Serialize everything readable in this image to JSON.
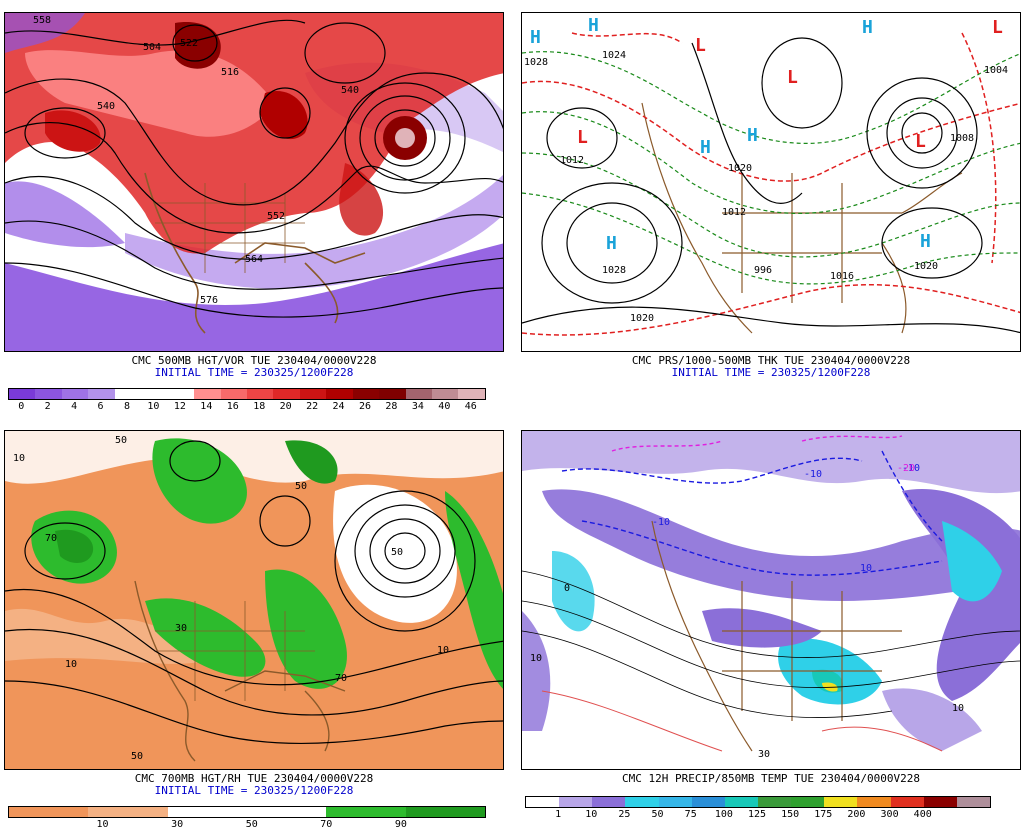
{
  "panels": {
    "tl": {
      "caption": "CMC 500MB HGT/VOR TUE 230404/0000V228",
      "init": "INITIAL TIME = 230325/1200F228",
      "scale_colors": [
        "#7a3ad8",
        "#8c55e0",
        "#9f72e6",
        "#b292ea",
        "#ffffff",
        "#ffffff",
        "#ffffff",
        "#ff8f8f",
        "#f86a6a",
        "#ee4545",
        "#e02828",
        "#cc1414",
        "#b00000",
        "#8a0000",
        "#800000",
        "#a4646e",
        "#bf8c94",
        "#e0b3b8"
      ],
      "scale_labels": [
        "0",
        "2",
        "4",
        "6",
        "8",
        "10",
        "12",
        "14",
        "16",
        "18",
        "20",
        "22",
        "24",
        "26",
        "28",
        "34",
        "40",
        "46"
      ],
      "contour_labels": [
        "558",
        "504",
        "522",
        "516",
        "540",
        "552",
        "564",
        "576",
        "540"
      ]
    },
    "tr": {
      "caption": "CMC PRS/1000-500MB THK TUE 230404/0000V228",
      "init": "INITIAL TIME = 230325/1200F228",
      "isobar_labels": [
        "1028",
        "1012",
        "1020",
        "1028",
        "1020",
        "1012",
        "1004",
        "1020",
        "1008",
        "996",
        "1016",
        "1024"
      ],
      "high": "H",
      "low": "L"
    },
    "bl": {
      "caption": "CMC 700MB HGT/RH TUE 230404/0000V228",
      "init": "INITIAL TIME = 230325/1200F228",
      "scale_colors": [
        "#f0955a",
        "#f4b183",
        "#ffffff",
        "#ffffff",
        "#2dbb2d",
        "#1f9a1f"
      ],
      "scale_labels": [
        "10",
        "30",
        "50",
        "70",
        "90"
      ],
      "contour_labels": [
        "50",
        "70",
        "10",
        "30",
        "50",
        "10",
        "50",
        "70",
        "10",
        "50"
      ]
    },
    "br": {
      "caption": "CMC 12H PRECIP/850MB TEMP TUE 230404/0000V228",
      "scale_colors": [
        "#ffffff",
        "#b8a6e8",
        "#8b6fd8",
        "#2fd0e8",
        "#35b6e8",
        "#2a8fd8",
        "#18c8b8",
        "#3a9a3a",
        "#2fa02f",
        "#f0e020",
        "#f08a20",
        "#e03020",
        "#8a0000",
        "#ae8e9a"
      ],
      "scale_labels": [
        "1",
        "10",
        "25",
        "50",
        "75",
        "100",
        "125",
        "150",
        "175",
        "200",
        "300",
        "400"
      ],
      "temp_labels": [
        "-10",
        "-10",
        "10",
        "-10",
        "0",
        "10",
        "-20",
        "10",
        "30"
      ]
    }
  }
}
